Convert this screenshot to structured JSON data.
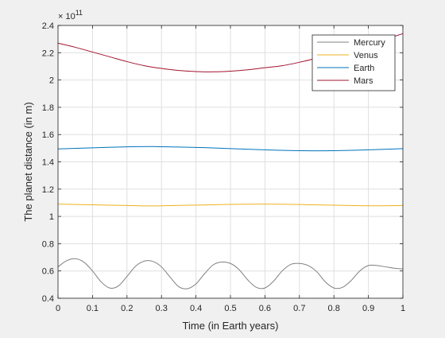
{
  "chart_data": {
    "type": "line",
    "xlabel": "Time (in Earth years)",
    "ylabel": "The planet distance (in m)",
    "y_multiplier_label": "× 10",
    "y_multiplier_exponent": "11",
    "xlim": [
      0,
      1
    ],
    "ylim": [
      0.4,
      2.4
    ],
    "y_scale": 100000000000.0,
    "grid": true,
    "legend_position": "top-right",
    "x_ticks": [
      "0",
      "0.1",
      "0.2",
      "0.3",
      "0.4",
      "0.5",
      "0.6",
      "0.7",
      "0.8",
      "0.9",
      "1"
    ],
    "y_ticks": [
      "0.4",
      "0.6",
      "0.8",
      "1",
      "1.2",
      "1.4",
      "1.6",
      "1.8",
      "2",
      "2.2",
      "2.4"
    ],
    "series": [
      {
        "name": "Mercury",
        "color": "#808080",
        "x": [
          0,
          0.025,
          0.05,
          0.075,
          0.1,
          0.125,
          0.15,
          0.175,
          0.2,
          0.225,
          0.25,
          0.275,
          0.3,
          0.325,
          0.35,
          0.375,
          0.4,
          0.425,
          0.45,
          0.475,
          0.5,
          0.525,
          0.55,
          0.575,
          0.6,
          0.625,
          0.65,
          0.675,
          0.7,
          0.725,
          0.75,
          0.775,
          0.8,
          0.825,
          0.85,
          0.875,
          0.9,
          0.925,
          0.95,
          0.975,
          1
        ],
        "y": [
          0.63,
          0.675,
          0.69,
          0.665,
          0.6,
          0.52,
          0.475,
          0.49,
          0.56,
          0.635,
          0.672,
          0.67,
          0.63,
          0.555,
          0.485,
          0.47,
          0.505,
          0.58,
          0.645,
          0.665,
          0.655,
          0.61,
          0.535,
          0.48,
          0.475,
          0.525,
          0.6,
          0.648,
          0.655,
          0.64,
          0.595,
          0.52,
          0.475,
          0.48,
          0.53,
          0.6,
          0.64,
          0.64,
          0.63,
          0.62,
          0.615
        ]
      },
      {
        "name": "Venus",
        "color": "#EDB120",
        "x": [
          0,
          0.1,
          0.2,
          0.25,
          0.3,
          0.4,
          0.5,
          0.6,
          0.7,
          0.8,
          0.9,
          1
        ],
        "y": [
          1.09,
          1.085,
          1.08,
          1.077,
          1.078,
          1.083,
          1.088,
          1.09,
          1.087,
          1.082,
          1.078,
          1.08
        ]
      },
      {
        "name": "Earth",
        "color": "#0072BD",
        "x": [
          0,
          0.1,
          0.2,
          0.27,
          0.3,
          0.4,
          0.5,
          0.6,
          0.7,
          0.77,
          0.8,
          0.9,
          1
        ],
        "y": [
          1.495,
          1.503,
          1.51,
          1.512,
          1.511,
          1.506,
          1.497,
          1.488,
          1.482,
          1.481,
          1.482,
          1.488,
          1.497
        ]
      },
      {
        "name": "Mars",
        "color": "#A2142F",
        "x": [
          0,
          0.05,
          0.1,
          0.15,
          0.2,
          0.25,
          0.3,
          0.35,
          0.4,
          0.45,
          0.5,
          0.55,
          0.6,
          0.65,
          0.7,
          0.75,
          0.8,
          0.85,
          0.9,
          0.95,
          1
        ],
        "y": [
          2.27,
          2.24,
          2.205,
          2.17,
          2.135,
          2.105,
          2.085,
          2.07,
          2.062,
          2.06,
          2.065,
          2.075,
          2.09,
          2.105,
          2.13,
          2.16,
          2.19,
          2.225,
          2.26,
          2.3,
          2.34
        ]
      }
    ]
  }
}
